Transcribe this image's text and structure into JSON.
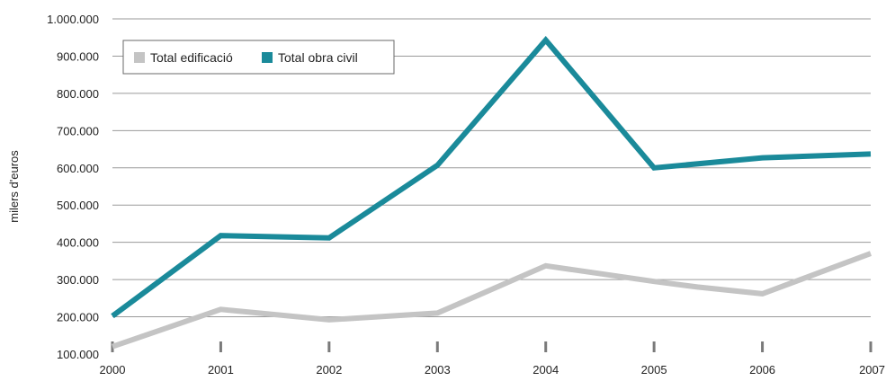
{
  "chart_data": {
    "type": "line",
    "title": "",
    "xlabel": "",
    "ylabel": "milers d'euros",
    "categories": [
      "2000",
      "2001",
      "2002",
      "2003",
      "2004",
      "2005",
      "2006",
      "2007"
    ],
    "y_ticks": [
      "100.000",
      "200.000",
      "300.000",
      "400.000",
      "500.000",
      "600.000",
      "700.000",
      "800.000",
      "900.000",
      "1.000.000"
    ],
    "ylim": [
      100000,
      1000000
    ],
    "grid": true,
    "legend_position": "top-left",
    "series": [
      {
        "name": "Total edificació",
        "color": "#c4c4c4",
        "points": [
          [
            2000,
            120000
          ],
          [
            2001,
            220000
          ],
          [
            2002,
            192000
          ],
          [
            2003,
            210000
          ],
          [
            2004,
            337000
          ],
          [
            2005,
            295000
          ],
          [
            2005.4,
            280000
          ],
          [
            2006,
            262000
          ],
          [
            2007,
            370000
          ]
        ]
      },
      {
        "name": "Total obra civil",
        "color": "#1a8a9a",
        "points": [
          [
            2000,
            202000
          ],
          [
            2001,
            418000
          ],
          [
            2002,
            412000
          ],
          [
            2003,
            607000
          ],
          [
            2004,
            943000
          ],
          [
            2005,
            600000
          ],
          [
            2006,
            627000
          ],
          [
            2007,
            637000
          ]
        ]
      }
    ]
  }
}
